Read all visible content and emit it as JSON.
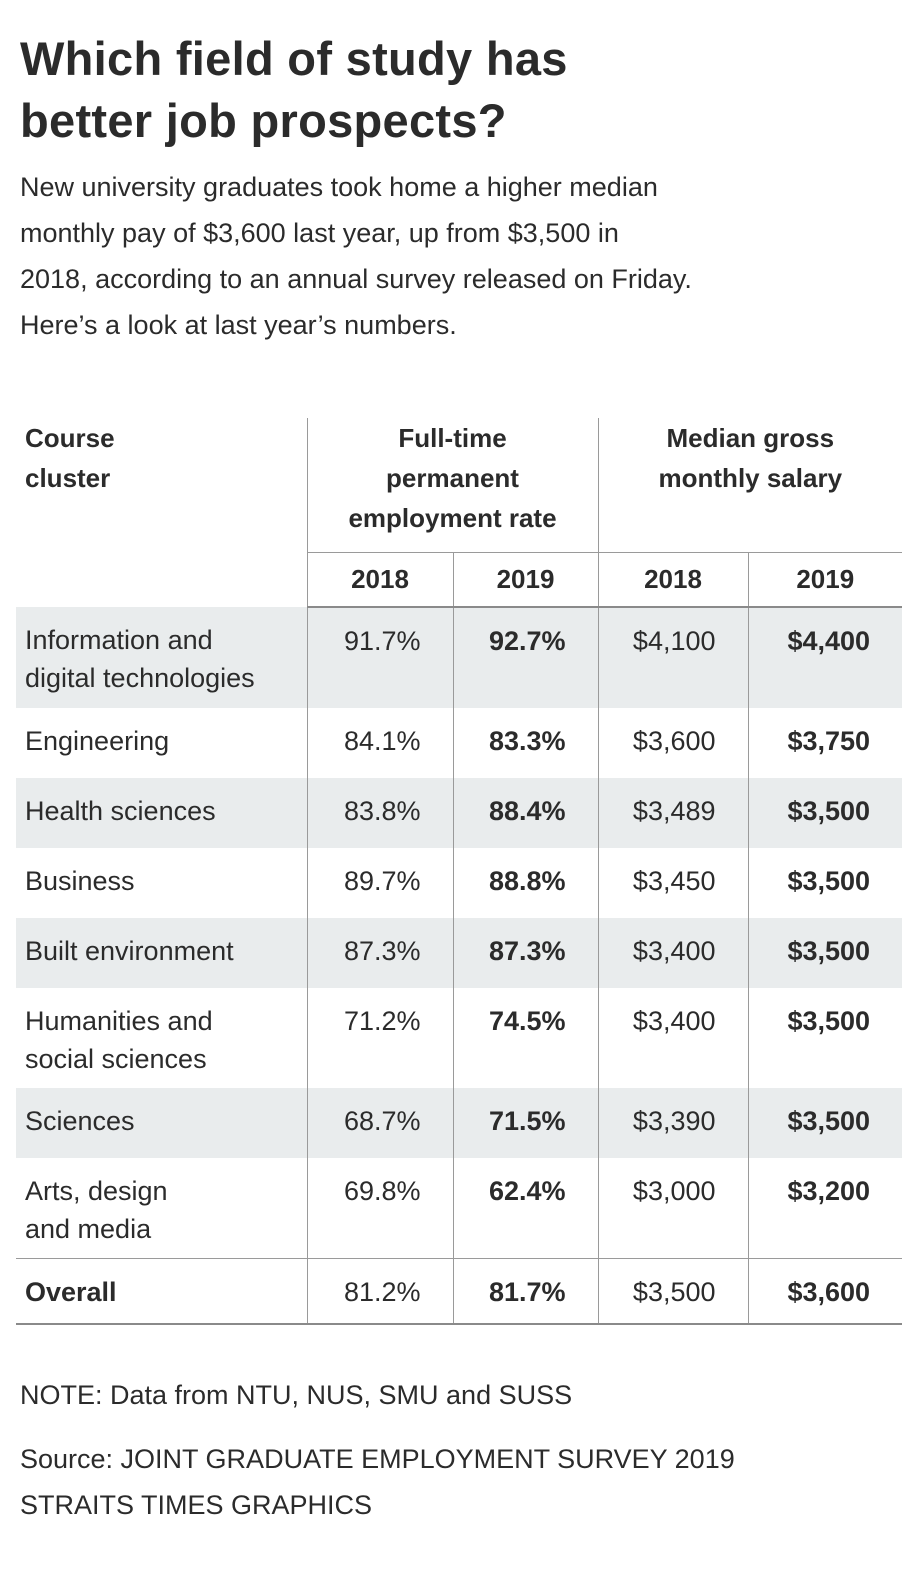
{
  "title_line1": "Which field of study has",
  "title_line2": "better job prospects?",
  "subtitle_lines": [
    "New university graduates took home a higher median",
    "monthly pay of $3,600 last year, up from $3,500 in",
    "2018, according to an annual survey released on Friday.",
    "Here’s a look at last year’s numbers."
  ],
  "headers": {
    "course_l1": "Course",
    "course_l2": "cluster",
    "emp_l1": "Full-time",
    "emp_l2": "permanent",
    "emp_l3": "employment rate",
    "sal_l1": "Median gross",
    "sal_l2": "monthly salary",
    "years": [
      "2018",
      "2019",
      "2018",
      "2019"
    ]
  },
  "chart_data": {
    "type": "table",
    "title": "Which field of study has better job prospects?",
    "columns": [
      "Course cluster",
      "Full-time permanent employment rate 2018",
      "Full-time permanent employment rate 2019",
      "Median gross monthly salary 2018",
      "Median gross monthly salary 2019"
    ],
    "rows": [
      {
        "l1": "Information and",
        "l2": "digital technologies",
        "emp2018": "91.7%",
        "emp2019": "92.7%",
        "sal2018": "$4,100",
        "sal2019": "$4,400"
      },
      {
        "l1": "Engineering",
        "l2": "",
        "emp2018": "84.1%",
        "emp2019": "83.3%",
        "sal2018": "$3,600",
        "sal2019": "$3,750"
      },
      {
        "l1": "Health sciences",
        "l2": "",
        "emp2018": "83.8%",
        "emp2019": "88.4%",
        "sal2018": "$3,489",
        "sal2019": "$3,500"
      },
      {
        "l1": "Business",
        "l2": "",
        "emp2018": "89.7%",
        "emp2019": "88.8%",
        "sal2018": "$3,450",
        "sal2019": "$3,500"
      },
      {
        "l1": "Built environment",
        "l2": "",
        "emp2018": "87.3%",
        "emp2019": "87.3%",
        "sal2018": "$3,400",
        "sal2019": "$3,500"
      },
      {
        "l1": "Humanities and",
        "l2": "social sciences",
        "emp2018": "71.2%",
        "emp2019": "74.5%",
        "sal2018": "$3,400",
        "sal2019": "$3,500"
      },
      {
        "l1": "Sciences",
        "l2": "",
        "emp2018": "68.7%",
        "emp2019": "71.5%",
        "sal2018": "$3,390",
        "sal2019": "$3,500"
      },
      {
        "l1": "Arts, design",
        "l2": "and media",
        "emp2018": "69.8%",
        "emp2019": "62.4%",
        "sal2018": "$3,000",
        "sal2019": "$3,200"
      }
    ],
    "overall": {
      "label": "Overall",
      "emp2018": "81.2%",
      "emp2019": "81.7%",
      "sal2018": "$3,500",
      "sal2019": "$3,600"
    }
  },
  "note": "NOTE: Data from NTU, NUS, SMU and SUSS",
  "source_l1": "Source: JOINT GRADUATE EMPLOYMENT SURVEY 2019",
  "source_l2": "STRAITS TIMES GRAPHICS"
}
